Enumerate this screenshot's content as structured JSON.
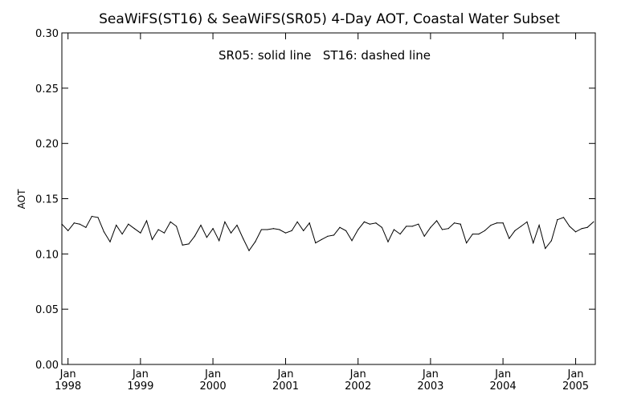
{
  "chart_data": {
    "type": "line",
    "title": "SeaWiFS(ST16) & SeaWiFS(SR05) 4-Day AOT, Coastal Water Subset",
    "annotation": "SR05: solid line   ST16: dashed line",
    "ylabel": "AOT",
    "xlabel": "",
    "ylim": [
      0.0,
      0.3
    ],
    "xlim": [
      "1997-12-01",
      "2005-04-10"
    ],
    "yticks": [
      "0.00",
      "0.05",
      "0.10",
      "0.15",
      "0.20",
      "0.25",
      "0.30"
    ],
    "xticks": [
      {
        "month": "Jan",
        "year": "1998",
        "date": "1998-01-01"
      },
      {
        "month": "Jan",
        "year": "1999",
        "date": "1999-01-01"
      },
      {
        "month": "Jan",
        "year": "2000",
        "date": "2000-01-01"
      },
      {
        "month": "Jan",
        "year": "2001",
        "date": "2001-01-01"
      },
      {
        "month": "Jan",
        "year": "2002",
        "date": "2002-01-01"
      },
      {
        "month": "Jan",
        "year": "2003",
        "date": "2003-01-01"
      },
      {
        "month": "Jan",
        "year": "2004",
        "date": "2004-01-01"
      },
      {
        "month": "Jan",
        "year": "2005",
        "date": "2005-01-01"
      }
    ],
    "grid": false,
    "line_color": "#000000",
    "series": [
      {
        "line_style": "solid",
        "x": [
          "1997-12-01",
          "1998-01-01",
          "1998-02-01",
          "1998-03-01",
          "1998-04-01",
          "1998-05-01",
          "1998-06-01",
          "1998-07-01",
          "1998-08-01",
          "1998-09-01",
          "1998-10-01",
          "1998-11-01",
          "1998-12-01",
          "1999-01-01",
          "1999-02-01",
          "1999-03-01",
          "1999-04-01",
          "1999-05-01",
          "1999-06-01",
          "1999-07-01",
          "1999-08-01",
          "1999-09-01",
          "1999-10-01",
          "1999-11-01",
          "1999-12-01",
          "2000-01-01",
          "2000-02-01",
          "2000-03-01",
          "2000-04-01",
          "2000-05-01",
          "2000-06-01",
          "2000-07-01",
          "2000-08-01",
          "2000-09-01",
          "2000-10-01",
          "2000-11-01",
          "2000-12-01",
          "2001-01-01",
          "2001-02-01",
          "2001-03-01",
          "2001-04-01",
          "2001-05-01",
          "2001-06-01",
          "2001-07-01",
          "2001-08-01",
          "2001-09-01",
          "2001-10-01",
          "2001-11-01",
          "2001-12-01",
          "2002-01-01",
          "2002-02-01",
          "2002-03-01",
          "2002-04-01",
          "2002-05-01",
          "2002-06-01",
          "2002-07-01",
          "2002-08-01",
          "2002-09-01",
          "2002-10-01",
          "2002-11-01",
          "2002-12-01",
          "2003-01-01",
          "2003-02-01",
          "2003-03-01",
          "2003-04-01",
          "2003-05-01",
          "2003-06-01",
          "2003-07-01",
          "2003-08-01",
          "2003-09-01",
          "2003-10-01",
          "2003-11-01",
          "2003-12-01",
          "2004-01-01",
          "2004-02-01",
          "2004-03-01",
          "2004-04-01",
          "2004-05-01",
          "2004-06-01",
          "2004-07-01",
          "2004-08-01",
          "2004-09-01",
          "2004-10-01",
          "2004-11-01",
          "2004-12-01",
          "2005-01-01",
          "2005-02-01",
          "2005-03-01",
          "2005-04-01"
        ],
        "values": [
          0.127,
          0.121,
          0.128,
          0.127,
          0.124,
          0.134,
          0.133,
          0.12,
          0.111,
          0.126,
          0.118,
          0.127,
          0.123,
          0.119,
          0.13,
          0.113,
          0.122,
          0.119,
          0.129,
          0.125,
          0.108,
          0.109,
          0.116,
          0.126,
          0.115,
          0.123,
          0.112,
          0.129,
          0.119,
          0.126,
          0.114,
          0.103,
          0.111,
          0.122,
          0.122,
          0.123,
          0.122,
          0.119,
          0.121,
          0.129,
          0.121,
          0.128,
          0.11,
          0.113,
          0.116,
          0.117,
          0.124,
          0.121,
          0.112,
          0.122,
          0.129,
          0.127,
          0.128,
          0.124,
          0.111,
          0.122,
          0.118,
          0.125,
          0.125,
          0.127,
          0.116,
          0.124,
          0.13,
          0.122,
          0.123,
          0.128,
          0.127,
          0.11,
          0.118,
          0.118,
          0.121,
          0.126,
          0.128,
          0.128,
          0.114,
          0.121,
          0.125,
          0.129,
          0.11,
          0.126,
          0.105,
          0.112,
          0.131,
          0.133,
          0.125,
          0.12,
          0.123,
          0.124,
          0.129
        ]
      }
    ]
  }
}
